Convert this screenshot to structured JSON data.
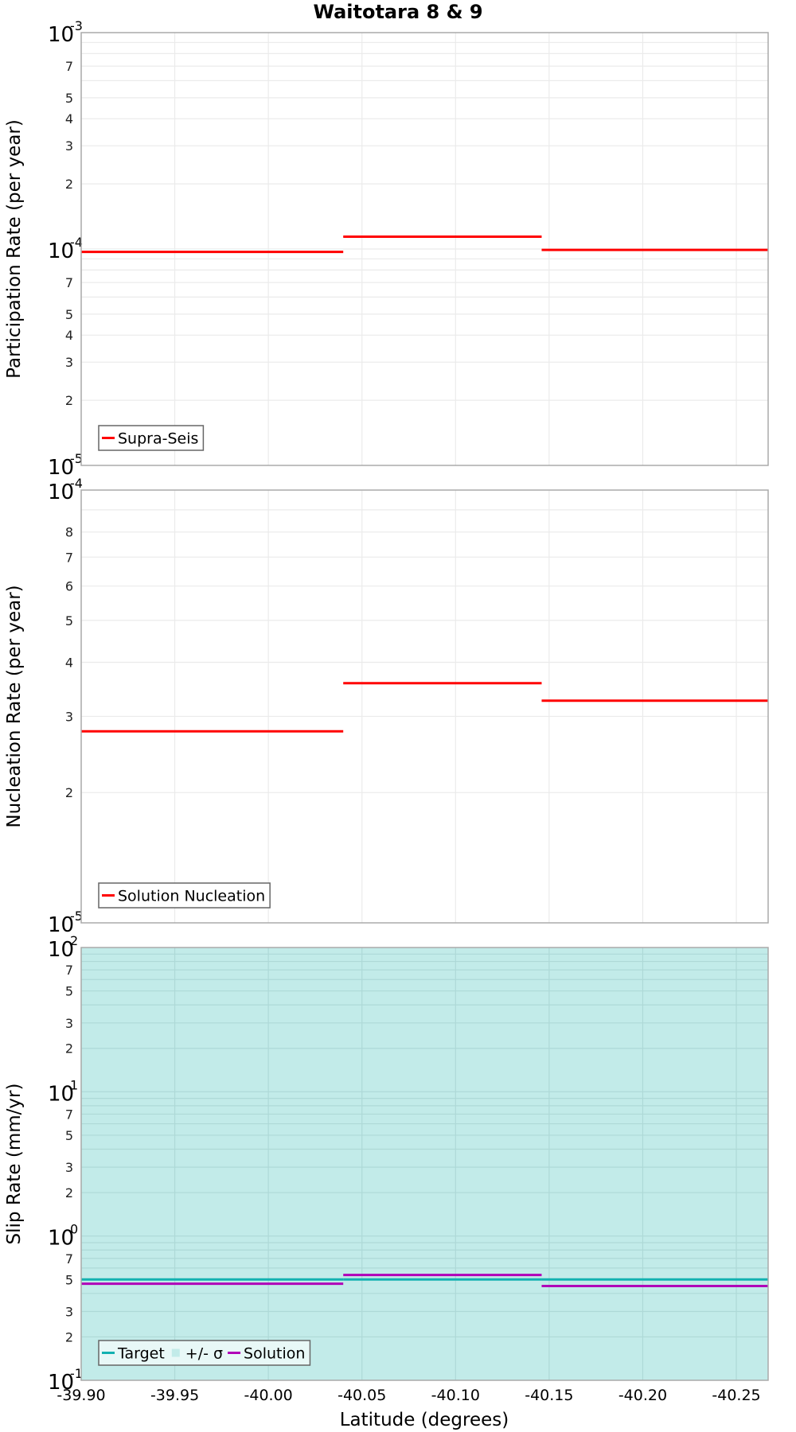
{
  "chart_data": {
    "type": "line",
    "subtype": "step",
    "title": "Waitotara 8 & 9",
    "xlabel": "Latitude (degrees)",
    "x_ticks": [
      "-39.90",
      "-39.95",
      "-40.00",
      "-40.05",
      "-40.10",
      "-40.15",
      "-40.20",
      "-40.25"
    ],
    "x_tick_values": [
      -39.9,
      -39.95,
      -40.0,
      -40.05,
      -40.1,
      -40.15,
      -40.2,
      -40.25
    ],
    "xlim": [
      -39.9,
      -40.267
    ],
    "x_reversed": true,
    "grid": true,
    "segments_x": [
      [
        -39.9,
        -40.04
      ],
      [
        -40.04,
        -40.146
      ],
      [
        -40.146,
        -40.267
      ]
    ],
    "panels": [
      {
        "id": "participation",
        "ylabel": "Participation Rate (per year)",
        "yscale": "log",
        "ylim": [
          1e-05,
          0.001
        ],
        "major_ticks": [
          {
            "base": "10",
            "exp": "-3",
            "value": 0.001
          },
          {
            "base": "10",
            "exp": "-4",
            "value": 0.0001
          },
          {
            "base": "10",
            "exp": "-5",
            "value": 1e-05
          }
        ],
        "minor_tick_labels": [
          2,
          3,
          4,
          5,
          7
        ],
        "legend": [
          {
            "label": "Supra-Seis",
            "color": "#ff0000",
            "kind": "line"
          }
        ],
        "series": [
          {
            "name": "Supra-Seis",
            "color": "#ff0000",
            "values": [
              9.7e-05,
              0.000114,
              9.9e-05
            ]
          }
        ]
      },
      {
        "id": "nucleation",
        "ylabel": "Nucleation Rate (per year)",
        "yscale": "log",
        "ylim": [
          1e-05,
          0.0001
        ],
        "major_ticks": [
          {
            "base": "10",
            "exp": "-4",
            "value": 0.0001
          },
          {
            "base": "10",
            "exp": "-5",
            "value": 1e-05
          }
        ],
        "minor_tick_labels": [
          2,
          3,
          4,
          5,
          6,
          7,
          8
        ],
        "legend": [
          {
            "label": "Solution Nucleation",
            "color": "#ff0000",
            "kind": "line"
          }
        ],
        "series": [
          {
            "name": "Solution Nucleation",
            "color": "#ff0000",
            "values": [
              2.77e-05,
              3.58e-05,
              3.26e-05
            ]
          }
        ]
      },
      {
        "id": "slip",
        "ylabel": "Slip Rate (mm/yr)",
        "yscale": "log",
        "ylim": [
          0.1,
          100
        ],
        "background": "#c2ebe9",
        "major_ticks": [
          {
            "base": "10",
            "exp": "2",
            "value": 100
          },
          {
            "base": "10",
            "exp": "1",
            "value": 10
          },
          {
            "base": "10",
            "exp": "0",
            "value": 1
          },
          {
            "base": "10",
            "exp": "-1",
            "value": 0.1
          }
        ],
        "minor_tick_labels": [
          2,
          3,
          5,
          7
        ],
        "legend": [
          {
            "label": "Target",
            "color": "#13b1b1",
            "kind": "line"
          },
          {
            "label": "+/- σ",
            "color": "#c2ebe9",
            "kind": "box"
          },
          {
            "label": "Solution",
            "color": "#b000b8",
            "kind": "line"
          }
        ],
        "sigma_band": [
          0.1,
          100
        ],
        "series": [
          {
            "name": "Target",
            "color": "#13b1b1",
            "values": [
              0.5,
              0.5,
              0.5
            ]
          },
          {
            "name": "Solution",
            "color": "#b000b8",
            "values": [
              0.467,
              0.537,
              0.45
            ]
          }
        ]
      }
    ]
  }
}
